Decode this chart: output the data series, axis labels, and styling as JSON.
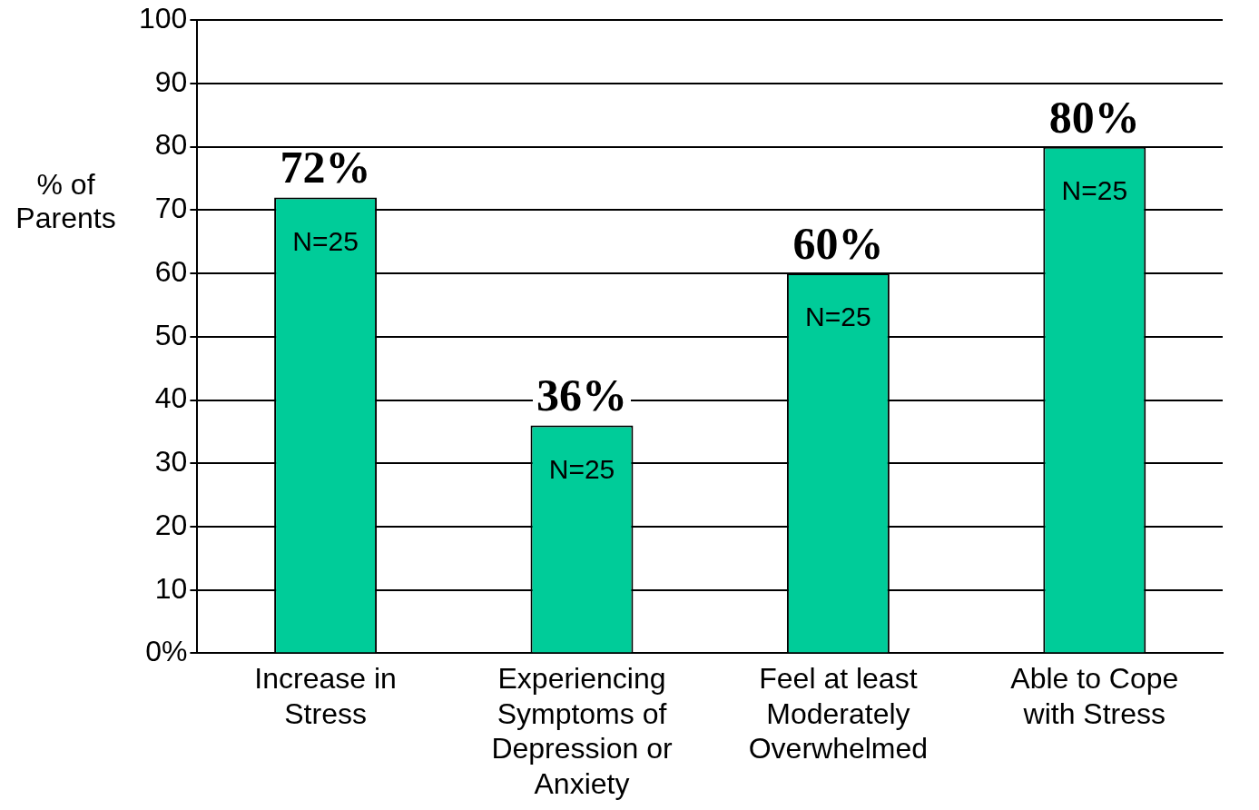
{
  "chart_data": {
    "type": "bar",
    "ylabel": "% of Parents",
    "categories": [
      "Increase in Stress",
      "Experiencing Symptoms of Depression or Anxiety",
      "Feel at least Moderately Overwhelmed",
      "Able to Cope with Stress"
    ],
    "values": [
      72,
      36,
      60,
      80
    ],
    "color": "#00cc99",
    "value_labels": [
      "72%",
      "36%",
      "60%",
      "80%"
    ],
    "annotations": [
      "N=25",
      "N=25",
      "N=25",
      "N=25"
    ],
    "ylim": [
      0,
      100
    ],
    "yticks": [
      {
        "value": 0,
        "label": "0%"
      },
      10,
      20,
      30,
      40,
      50,
      60,
      70,
      80,
      90,
      100
    ],
    "grid": "y",
    "legend": false
  }
}
